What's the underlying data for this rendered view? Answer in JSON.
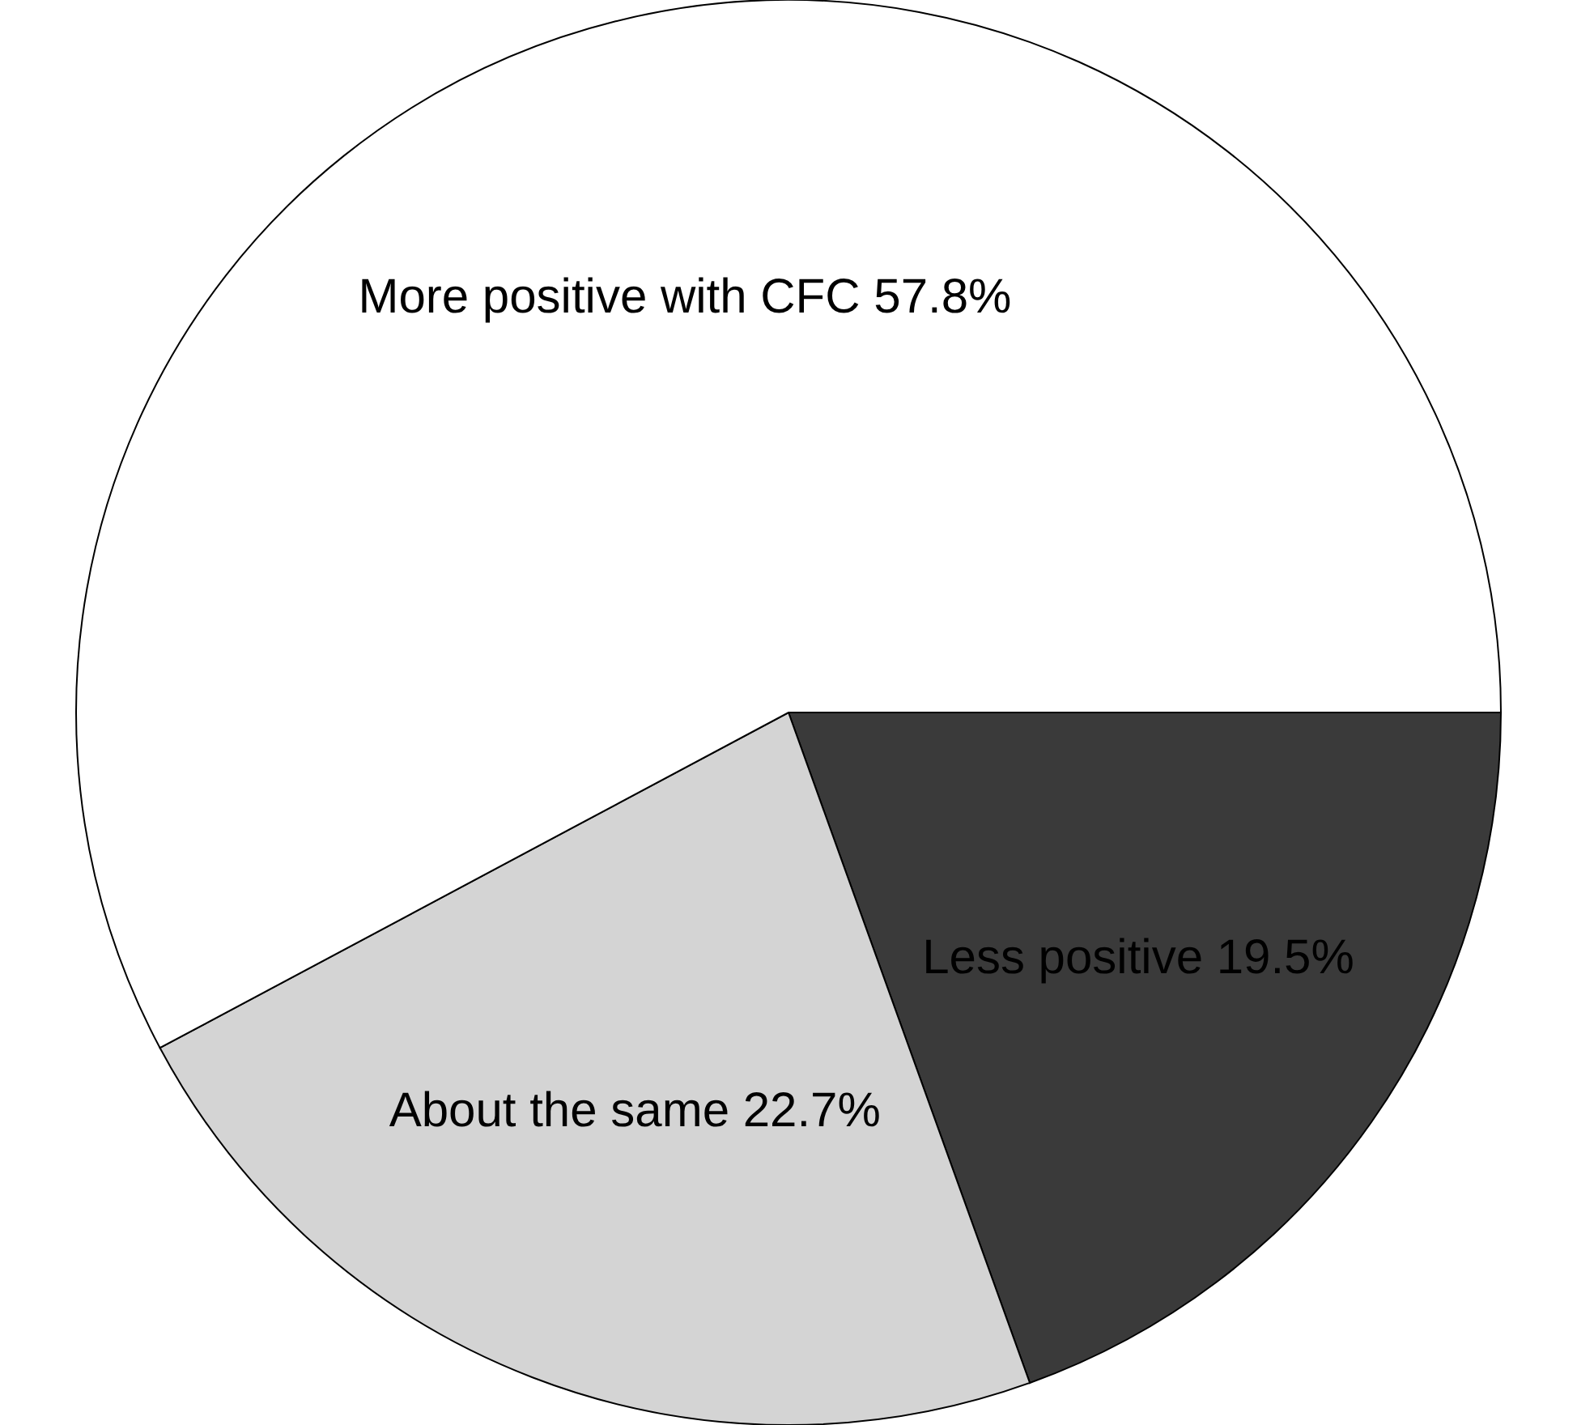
{
  "chart_data": {
    "type": "pie",
    "categories": [
      "Less positive",
      "About the same",
      "More positive with CFC"
    ],
    "values": [
      19.5,
      22.7,
      57.8
    ],
    "value_labels": [
      "19.5%",
      "22.7%",
      "57.8%"
    ],
    "colors": [
      "#3a3a3a",
      "#d4d4d4",
      "#ffffff"
    ]
  }
}
